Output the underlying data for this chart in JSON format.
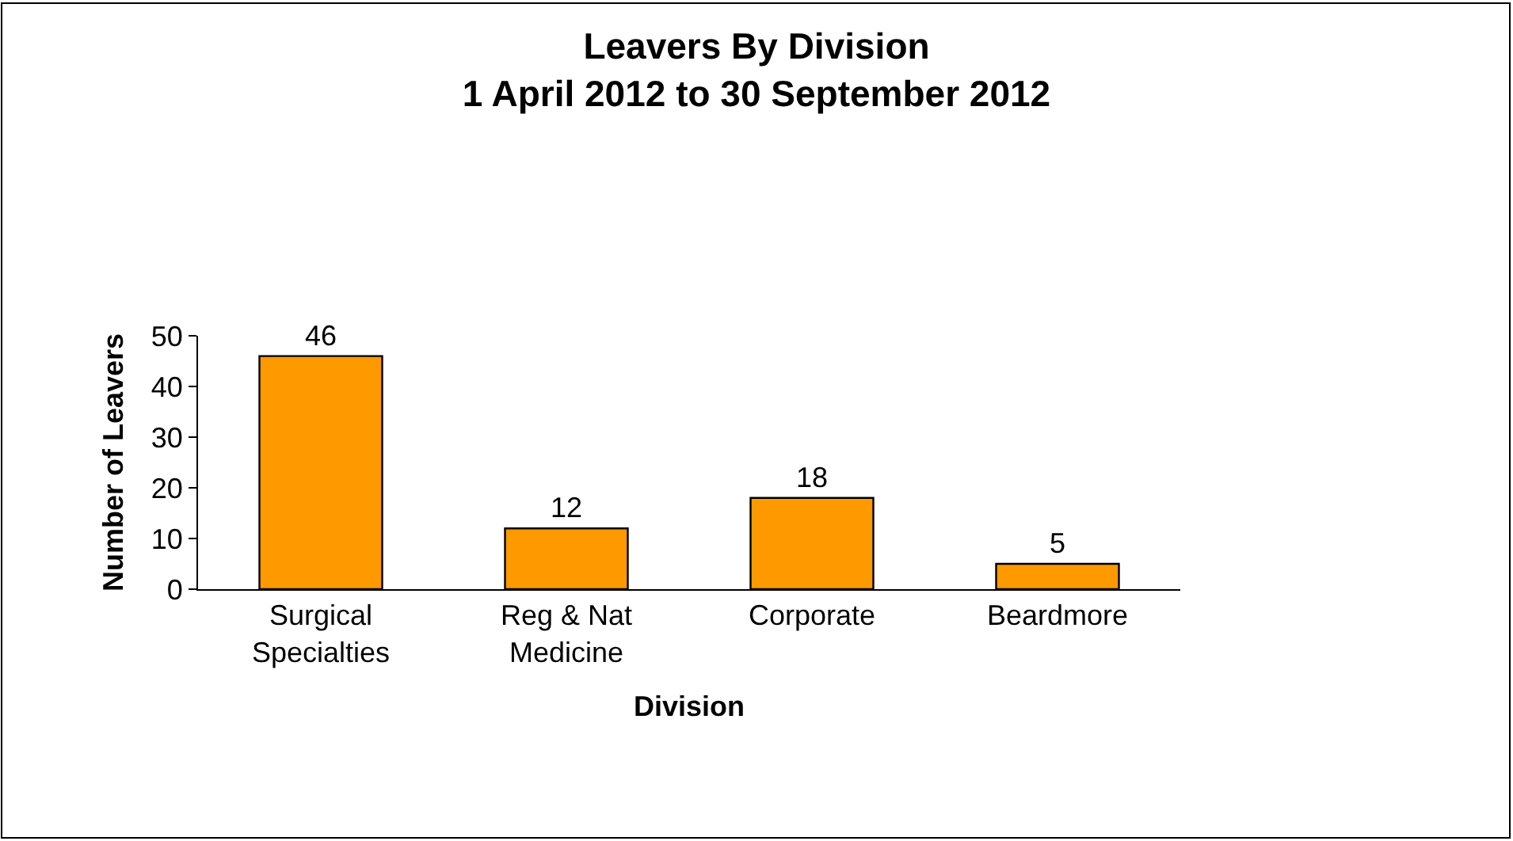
{
  "chart_data": {
    "type": "bar",
    "title": "Leavers By Division\n1 April 2012 to 30 September 2012",
    "xlabel": "Division",
    "ylabel": "Number of Leavers",
    "categories": [
      "Surgical Specialties",
      "Reg & Nat Medicine",
      "Corporate",
      "Beardmore"
    ],
    "values": [
      46,
      12,
      18,
      5
    ],
    "color": "#ff9900",
    "ylim": [
      0,
      50
    ],
    "yticks": [
      0,
      10,
      20,
      30,
      40,
      50
    ],
    "legend": false,
    "data_labels": true
  }
}
